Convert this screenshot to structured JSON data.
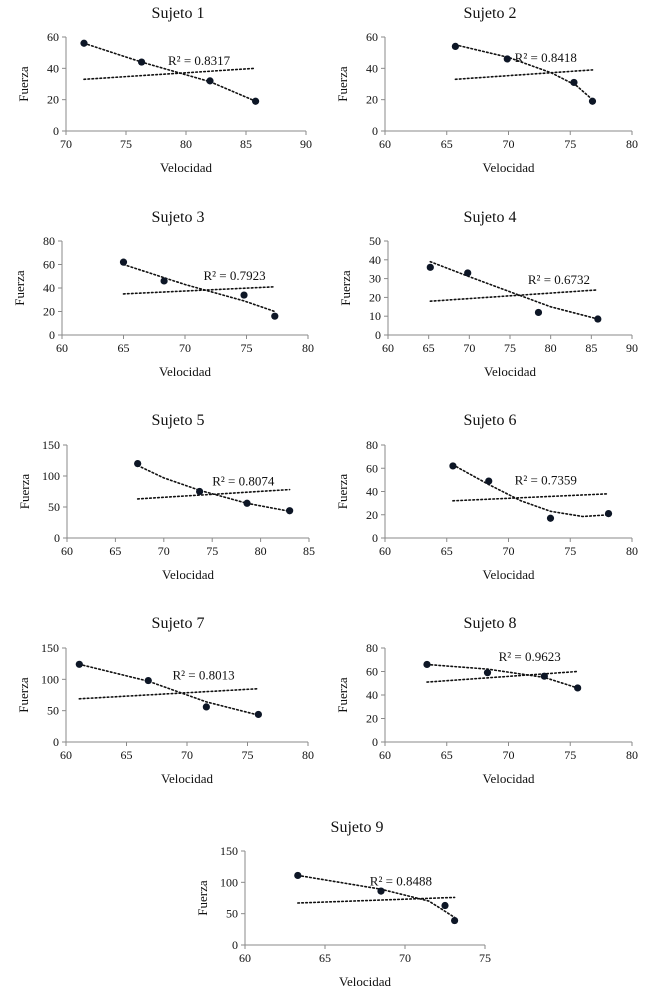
{
  "figure": {
    "xlabel": "Velocidad",
    "ylabel": "Fuerza"
  },
  "chart_data": [
    {
      "type": "scatter",
      "title": "Sujeto 1",
      "xlabel": "Velocidad",
      "ylabel": "Fuerza",
      "xlim": [
        70,
        90
      ],
      "xticks": [
        70,
        75,
        80,
        85,
        90
      ],
      "ylim": [
        0,
        60
      ],
      "yticks": [
        0,
        20,
        40,
        60
      ],
      "points": [
        [
          71.5,
          56
        ],
        [
          76.3,
          44
        ],
        [
          82,
          32
        ],
        [
          85.8,
          19
        ]
      ],
      "r2": "R² = 0.8317",
      "trend_curve": [
        [
          71.5,
          56
        ],
        [
          76.3,
          44
        ],
        [
          82,
          31.5
        ],
        [
          85.8,
          19
        ]
      ],
      "trend_flat": [
        [
          71.5,
          33
        ],
        [
          85.8,
          40
        ]
      ]
    },
    {
      "type": "scatter",
      "title": "Sujeto 2",
      "xlabel": "Velocidad",
      "ylabel": "Fuerza",
      "xlim": [
        60,
        80
      ],
      "xticks": [
        60,
        65,
        70,
        75,
        80
      ],
      "ylim": [
        0,
        60
      ],
      "yticks": [
        0,
        20,
        40,
        60
      ],
      "points": [
        [
          65.7,
          54
        ],
        [
          69.9,
          46
        ],
        [
          75.3,
          31
        ],
        [
          76.8,
          19
        ]
      ],
      "r2": "R² = 0.8418",
      "trend_curve": [
        [
          65.7,
          55
        ],
        [
          70,
          47
        ],
        [
          73.5,
          37
        ],
        [
          75.5,
          29
        ],
        [
          76.8,
          20
        ]
      ],
      "trend_flat": [
        [
          65.7,
          33
        ],
        [
          76.8,
          39
        ]
      ]
    },
    {
      "type": "scatter",
      "title": "Sujeto 3",
      "xlabel": "Velocidad",
      "ylabel": "Fuerza",
      "xlim": [
        60,
        80
      ],
      "xticks": [
        60,
        65,
        70,
        75,
        80
      ],
      "ylim": [
        0,
        80
      ],
      "yticks": [
        0,
        20,
        40,
        60,
        80
      ],
      "points": [
        [
          65,
          62
        ],
        [
          68.3,
          46
        ],
        [
          74.8,
          34
        ],
        [
          77.3,
          16
        ]
      ],
      "r2": "R² = 0.7923",
      "trend_curve": [
        [
          65,
          60
        ],
        [
          70,
          43
        ],
        [
          74.8,
          29
        ],
        [
          77.3,
          20
        ]
      ],
      "trend_flat": [
        [
          65,
          35
        ],
        [
          77.3,
          41
        ]
      ]
    },
    {
      "type": "scatter",
      "title": "Sujeto 4",
      "xlabel": "Velocidad",
      "ylabel": "Fuerza",
      "xlim": [
        60,
        90
      ],
      "xticks": [
        60,
        65,
        70,
        75,
        80,
        85,
        90
      ],
      "ylim": [
        0,
        50
      ],
      "yticks": [
        0,
        10,
        20,
        30,
        40,
        50
      ],
      "points": [
        [
          65.2,
          36
        ],
        [
          69.8,
          33
        ],
        [
          78.5,
          12
        ],
        [
          85.8,
          8.5
        ]
      ],
      "r2": "R² = 0.6732",
      "trend_curve": [
        [
          65.2,
          39
        ],
        [
          70,
          31
        ],
        [
          75,
          23
        ],
        [
          80,
          15
        ],
        [
          85.8,
          8.5
        ]
      ],
      "trend_flat": [
        [
          65.2,
          18
        ],
        [
          85.8,
          24
        ]
      ]
    },
    {
      "type": "scatter",
      "title": "Sujeto 5",
      "xlabel": "Velocidad",
      "ylabel": "Fuerza",
      "xlim": [
        60,
        85
      ],
      "xticks": [
        60,
        65,
        70,
        75,
        80,
        85
      ],
      "ylim": [
        0,
        150
      ],
      "yticks": [
        0,
        50,
        100,
        150
      ],
      "points": [
        [
          67.3,
          120
        ],
        [
          73.7,
          75
        ],
        [
          78.6,
          56
        ],
        [
          83,
          44
        ]
      ],
      "r2": "R² = 0.8074",
      "trend_curve": [
        [
          67.3,
          117
        ],
        [
          70,
          97
        ],
        [
          73.7,
          77
        ],
        [
          78.6,
          56
        ],
        [
          83,
          43
        ]
      ],
      "trend_flat": [
        [
          67.3,
          63
        ],
        [
          83,
          78
        ]
      ]
    },
    {
      "type": "scatter",
      "title": "Sujeto 6",
      "xlabel": "Velocidad",
      "ylabel": "Fuerza",
      "xlim": [
        60,
        80
      ],
      "xticks": [
        60,
        65,
        70,
        75,
        80
      ],
      "ylim": [
        0,
        80
      ],
      "yticks": [
        0,
        20,
        40,
        60,
        80
      ],
      "points": [
        [
          65.5,
          62
        ],
        [
          68.4,
          49
        ],
        [
          73.4,
          17
        ],
        [
          78.1,
          21
        ]
      ],
      "r2": "R² = 0.7359",
      "trend_curve": [
        [
          65.5,
          63
        ],
        [
          68.4,
          46
        ],
        [
          71,
          32
        ],
        [
          73.4,
          23
        ],
        [
          76,
          18.5
        ],
        [
          78.1,
          20
        ]
      ],
      "trend_flat": [
        [
          65.5,
          32
        ],
        [
          78.1,
          38
        ]
      ]
    },
    {
      "type": "scatter",
      "title": "Sujeto 7",
      "xlabel": "Velocidad",
      "ylabel": "Fuerza",
      "xlim": [
        60,
        80
      ],
      "xticks": [
        60,
        65,
        70,
        75,
        80
      ],
      "ylim": [
        0,
        150
      ],
      "yticks": [
        0,
        50,
        100,
        150
      ],
      "points": [
        [
          61.1,
          124
        ],
        [
          66.8,
          98
        ],
        [
          71.6,
          56
        ],
        [
          75.9,
          44
        ]
      ],
      "r2": "R² = 0.8013",
      "trend_curve": [
        [
          61.1,
          124
        ],
        [
          66.8,
          97
        ],
        [
          71.6,
          64
        ],
        [
          75.9,
          43
        ]
      ],
      "trend_flat": [
        [
          61.1,
          69
        ],
        [
          75.9,
          85
        ]
      ]
    },
    {
      "type": "scatter",
      "title": "Sujeto 8",
      "xlabel": "Velocidad",
      "ylabel": "Fuerza",
      "xlim": [
        60,
        80
      ],
      "xticks": [
        60,
        65,
        70,
        75,
        80
      ],
      "ylim": [
        0,
        80
      ],
      "yticks": [
        0,
        20,
        40,
        60,
        80
      ],
      "points": [
        [
          63.4,
          66
        ],
        [
          68.3,
          59
        ],
        [
          72.9,
          56
        ],
        [
          75.6,
          46
        ]
      ],
      "r2": "R² = 0.9623",
      "trend_curve": [
        [
          63.4,
          66
        ],
        [
          68.3,
          62
        ],
        [
          72.9,
          55
        ],
        [
          75.6,
          46
        ]
      ],
      "trend_flat": [
        [
          63.4,
          51
        ],
        [
          75.6,
          60
        ]
      ]
    },
    {
      "type": "scatter",
      "title": "Sujeto 9",
      "xlabel": "Velocidad",
      "ylabel": "Fuerza",
      "xlim": [
        60,
        75
      ],
      "xticks": [
        60,
        65,
        70,
        75
      ],
      "ylim": [
        0,
        150
      ],
      "yticks": [
        0,
        50,
        100,
        150
      ],
      "points": [
        [
          63.3,
          111
        ],
        [
          68.5,
          86
        ],
        [
          72.5,
          63
        ],
        [
          73.1,
          39
        ]
      ],
      "r2": "R² = 0.8488",
      "trend_curve": [
        [
          63.3,
          111
        ],
        [
          68.5,
          89
        ],
        [
          71.5,
          70
        ],
        [
          73.1,
          44
        ]
      ],
      "trend_flat": [
        [
          63.3,
          67
        ],
        [
          73.1,
          76
        ]
      ]
    }
  ]
}
